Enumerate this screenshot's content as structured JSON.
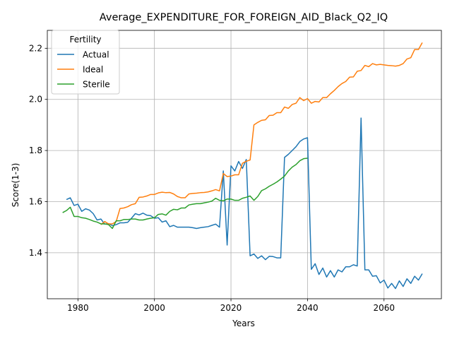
{
  "chart_data": {
    "type": "line",
    "title": "Average_EXPENDITURE_FOR_FOREIGN_AID_Black_Q2_IQ",
    "xlabel": "Years",
    "ylabel": "Score(1-3)",
    "xlim": [
      1972,
      2075
    ],
    "ylim": [
      1.22,
      2.27
    ],
    "xticks": [
      1980,
      2000,
      2020,
      2040,
      2060
    ],
    "yticks": [
      1.4,
      1.6,
      1.8,
      2.0,
      2.2
    ],
    "ytick_labels": [
      "1.4",
      "1.6",
      "1.8",
      "2.0",
      "2.2"
    ],
    "grid": true,
    "legend": {
      "title": "Fertility",
      "location": "top-left"
    },
    "series": [
      {
        "name": "Actual",
        "color": "#1f77b4",
        "x": [
          1977,
          1978,
          1979,
          1980,
          1981,
          1982,
          1983,
          1984,
          1985,
          1986,
          1987,
          1988,
          1989,
          1990,
          1991,
          1992,
          1993,
          1994,
          1995,
          1996,
          1997,
          1998,
          1999,
          2000,
          2001,
          2002,
          2003,
          2004,
          2005,
          2006,
          2007,
          2008,
          2009,
          2010,
          2011,
          2012,
          2013,
          2014,
          2015,
          2016,
          2017,
          2018,
          2019,
          2020,
          2021,
          2022,
          2023,
          2024,
          2025,
          2026,
          2027,
          2028,
          2029,
          2030,
          2031,
          2032,
          2033,
          2034,
          2035,
          2036,
          2037,
          2038,
          2039,
          2040,
          2041,
          2042,
          2043,
          2044,
          2045,
          2046,
          2047,
          2048,
          2049,
          2050,
          2051,
          2052,
          2053,
          2054,
          2055,
          2056,
          2057,
          2058,
          2059,
          2060,
          2061,
          2062,
          2063,
          2064,
          2065,
          2066,
          2067,
          2068,
          2069,
          2070
        ],
        "y": [
          1.608,
          1.615,
          1.585,
          1.59,
          1.562,
          1.572,
          1.567,
          1.553,
          1.528,
          1.532,
          1.512,
          1.514,
          1.506,
          1.51,
          1.517,
          1.517,
          1.519,
          1.535,
          1.553,
          1.548,
          1.555,
          1.547,
          1.545,
          1.535,
          1.537,
          1.52,
          1.525,
          1.502,
          1.507,
          1.5,
          1.5,
          1.5,
          1.5,
          1.498,
          1.495,
          1.498,
          1.5,
          1.502,
          1.507,
          1.512,
          1.5,
          1.72,
          1.43,
          1.74,
          1.72,
          1.757,
          1.73,
          1.765,
          1.388,
          1.395,
          1.378,
          1.388,
          1.373,
          1.386,
          1.385,
          1.38,
          1.38,
          1.773,
          1.785,
          1.8,
          1.815,
          1.835,
          1.845,
          1.85,
          1.335,
          1.357,
          1.315,
          1.34,
          1.305,
          1.33,
          1.305,
          1.333,
          1.325,
          1.345,
          1.345,
          1.353,
          1.348,
          1.927,
          1.333,
          1.333,
          1.308,
          1.31,
          1.282,
          1.293,
          1.262,
          1.28,
          1.26,
          1.29,
          1.268,
          1.298,
          1.28,
          1.308,
          1.293,
          1.318
        ]
      },
      {
        "name": "Ideal",
        "color": "#ff7f0e",
        "x": [
          1986,
          1987,
          1988,
          1989,
          1990,
          1991,
          1992,
          1993,
          1994,
          1995,
          1996,
          1997,
          1998,
          1999,
          2000,
          2001,
          2002,
          2003,
          2004,
          2005,
          2006,
          2007,
          2008,
          2009,
          2010,
          2011,
          2012,
          2013,
          2014,
          2015,
          2016,
          2017,
          2018,
          2019,
          2020,
          2021,
          2022,
          2023,
          2024,
          2025,
          2026,
          2027,
          2028,
          2029,
          2030,
          2031,
          2032,
          2033,
          2034,
          2035,
          2036,
          2037,
          2038,
          2039,
          2040,
          2041,
          2042,
          2043,
          2044,
          2045,
          2046,
          2047,
          2048,
          2049,
          2050,
          2051,
          2052,
          2053,
          2054,
          2055,
          2056,
          2057,
          2058,
          2059,
          2060,
          2061,
          2062,
          2063,
          2064,
          2065,
          2066,
          2067,
          2068,
          2069,
          2070
        ],
        "y": [
          1.51,
          1.522,
          1.513,
          1.513,
          1.522,
          1.573,
          1.575,
          1.58,
          1.588,
          1.592,
          1.617,
          1.618,
          1.622,
          1.628,
          1.628,
          1.634,
          1.637,
          1.635,
          1.636,
          1.63,
          1.62,
          1.615,
          1.615,
          1.63,
          1.632,
          1.633,
          1.635,
          1.636,
          1.638,
          1.642,
          1.647,
          1.642,
          1.71,
          1.698,
          1.7,
          1.705,
          1.705,
          1.75,
          1.758,
          1.763,
          1.9,
          1.91,
          1.918,
          1.92,
          1.937,
          1.938,
          1.948,
          1.948,
          1.97,
          1.965,
          1.98,
          1.985,
          2.007,
          1.995,
          2.003,
          1.985,
          1.992,
          1.99,
          2.007,
          2.007,
          2.022,
          2.035,
          2.05,
          2.062,
          2.07,
          2.087,
          2.088,
          2.11,
          2.113,
          2.133,
          2.128,
          2.14,
          2.135,
          2.137,
          2.135,
          2.133,
          2.132,
          2.13,
          2.133,
          2.14,
          2.158,
          2.163,
          2.195,
          2.195,
          2.222
        ]
      },
      {
        "name": "Sterile",
        "color": "#2ca02c",
        "x": [
          1976,
          1977,
          1978,
          1979,
          1980,
          1981,
          1982,
          1983,
          1984,
          1985,
          1986,
          1987,
          1988,
          1989,
          1990,
          1991,
          1992,
          1993,
          1994,
          1995,
          1996,
          1997,
          1998,
          1999,
          2000,
          2001,
          2002,
          2003,
          2004,
          2005,
          2006,
          2007,
          2008,
          2009,
          2010,
          2011,
          2012,
          2013,
          2014,
          2015,
          2016,
          2017,
          2018,
          2019,
          2020,
          2021,
          2022,
          2023,
          2024,
          2025,
          2026,
          2027,
          2028,
          2029,
          2030,
          2031,
          2032,
          2033,
          2034,
          2035,
          2036,
          2037,
          2038,
          2039,
          2040
        ],
        "y": [
          1.557,
          1.565,
          1.578,
          1.542,
          1.542,
          1.537,
          1.535,
          1.53,
          1.524,
          1.52,
          1.513,
          1.513,
          1.51,
          1.495,
          1.525,
          1.525,
          1.53,
          1.53,
          1.532,
          1.532,
          1.528,
          1.528,
          1.532,
          1.535,
          1.537,
          1.55,
          1.552,
          1.547,
          1.562,
          1.57,
          1.568,
          1.575,
          1.575,
          1.587,
          1.59,
          1.592,
          1.592,
          1.595,
          1.598,
          1.602,
          1.613,
          1.605,
          1.603,
          1.61,
          1.61,
          1.605,
          1.605,
          1.613,
          1.617,
          1.622,
          1.605,
          1.62,
          1.643,
          1.65,
          1.66,
          1.668,
          1.677,
          1.688,
          1.7,
          1.72,
          1.735,
          1.745,
          1.76,
          1.768,
          1.77
        ]
      }
    ]
  }
}
